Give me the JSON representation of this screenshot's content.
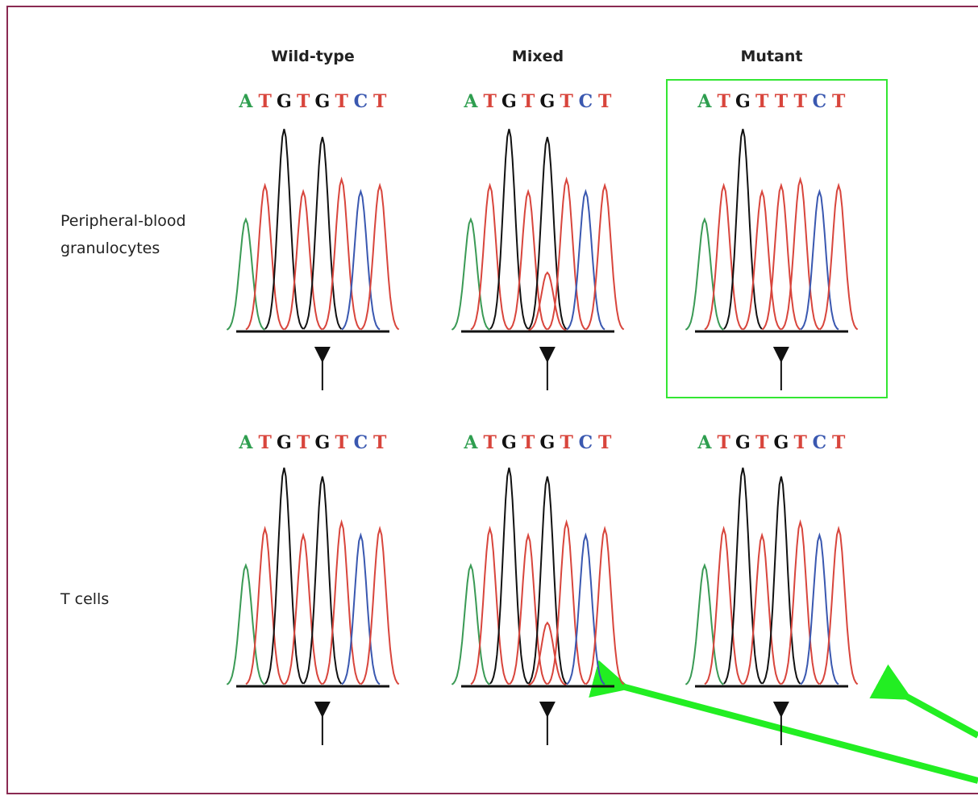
{
  "columns": [
    "Wild-type",
    "Mixed",
    "Mutant"
  ],
  "rows": [
    {
      "label": [
        "Peripheral-blood",
        "granulocytes"
      ],
      "sequences": [
        [
          "A",
          "T",
          "G",
          "T",
          "G",
          "T",
          "C",
          "T"
        ],
        [
          "A",
          "T",
          "G",
          "T",
          "G",
          "T",
          "C",
          "T"
        ],
        [
          "A",
          "T",
          "G",
          "T",
          "T",
          "T",
          "C",
          "T"
        ]
      ]
    },
    {
      "label": [
        "T cells"
      ],
      "sequences": [
        [
          "A",
          "T",
          "G",
          "T",
          "G",
          "T",
          "C",
          "T"
        ],
        [
          "A",
          "T",
          "G",
          "T",
          "G",
          "T",
          "C",
          "T"
        ],
        [
          "A",
          "T",
          "G",
          "T",
          "G",
          "T",
          "C",
          "T"
        ]
      ]
    }
  ]
}
